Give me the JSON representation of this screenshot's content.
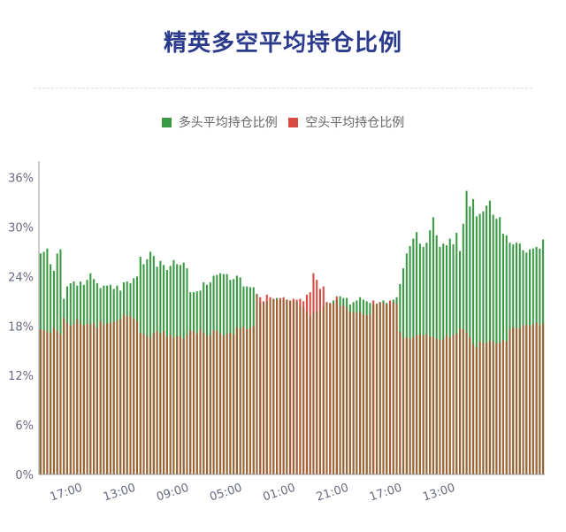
{
  "title": "精英多空平均持仓比例",
  "legend": {
    "long_label": "多头平均持仓比例",
    "short_label": "空头平均持仓比例"
  },
  "colors": {
    "long": "#3a9a43",
    "short": "#d94a42",
    "title": "#2b3a8c"
  },
  "chart_data": {
    "type": "bar",
    "stacked": false,
    "overlay": true,
    "ylim": [
      0,
      38
    ],
    "yticks": [
      "0%",
      "6%",
      "12%",
      "18%",
      "24%",
      "30%",
      "36%"
    ],
    "ytick_values": [
      0,
      6,
      12,
      18,
      24,
      30,
      36
    ],
    "xticks": [
      "17:00",
      "13:00",
      "09:00",
      "05:00",
      "01:00",
      "21:00",
      "17:00",
      "13:00"
    ],
    "xtick_index": [
      8,
      24,
      40,
      56,
      72,
      88,
      104,
      120
    ],
    "grid": false,
    "legend_position": "top-center",
    "series": [
      {
        "name": "多头平均持仓比例",
        "values": [
          26.8,
          27.0,
          27.4,
          25.5,
          24.7,
          26.8,
          27.3,
          21.3,
          22.8,
          23.2,
          23.4,
          22.9,
          23.4,
          23.0,
          23.6,
          24.4,
          23.7,
          23.2,
          22.6,
          22.9,
          22.9,
          23.0,
          22.5,
          22.9,
          22.3,
          23.3,
          23.4,
          23.2,
          23.8,
          24.0,
          26.4,
          25.5,
          26.1,
          27.0,
          26.5,
          25.2,
          25.9,
          25.4,
          24.8,
          25.3,
          26.0,
          25.5,
          25.4,
          25.7,
          25.0,
          22.1,
          22.1,
          22.2,
          22.3,
          23.3,
          23.0,
          23.3,
          24.1,
          24.2,
          24.4,
          24.3,
          24.3,
          23.6,
          23.7,
          24.1,
          23.9,
          22.8,
          22.8,
          22.7,
          22.7,
          21.9,
          20.8,
          20.8,
          21.0,
          21.2,
          21.3,
          21.4,
          21.3,
          21.3,
          21.2,
          21.0,
          21.0,
          20.9,
          20.5,
          20.3,
          19.7,
          19.2,
          19.6,
          19.8,
          19.9,
          20.4,
          20.8,
          20.7,
          21.1,
          21.2,
          21.6,
          21.4,
          21.4,
          20.6,
          20.9,
          21.1,
          21.5,
          21.2,
          21.0,
          20.8,
          20.6,
          20.7,
          20.9,
          21.1,
          20.8,
          20.6,
          21.2,
          21.5,
          23.1,
          25.0,
          26.8,
          27.7,
          28.6,
          29.4,
          28.0,
          27.6,
          28.1,
          29.6,
          31.2,
          29.0,
          27.6,
          28.0,
          27.8,
          28.6,
          27.9,
          29.3,
          27.1,
          30.4,
          34.4,
          32.5,
          33.4,
          31.3,
          31.6,
          31.9,
          32.6,
          33.2,
          31.5,
          31.0,
          31.2,
          29.2,
          29.0,
          28.1,
          27.9,
          28.1,
          28.0,
          27.2,
          26.9,
          27.3,
          27.4,
          27.6,
          27.4,
          28.5
        ],
        "color": "#3a9a43"
      },
      {
        "name": "空头平均持仓比例",
        "values": [
          17.6,
          17.5,
          17.3,
          17.2,
          17.8,
          17.4,
          17.0,
          19.0,
          18.4,
          18.0,
          18.2,
          18.8,
          18.3,
          18.1,
          18.3,
          18.2,
          18.3,
          17.8,
          18.6,
          18.2,
          18.3,
          18.4,
          18.5,
          18.7,
          18.8,
          19.4,
          19.2,
          19.2,
          18.9,
          18.6,
          17.2,
          17.0,
          16.8,
          16.6,
          17.2,
          17.4,
          17.1,
          17.4,
          16.7,
          16.9,
          16.6,
          16.8,
          16.7,
          16.5,
          16.9,
          17.5,
          17.4,
          17.1,
          17.6,
          17.2,
          16.8,
          16.9,
          17.5,
          17.4,
          17.1,
          16.8,
          17.1,
          17.2,
          17.0,
          17.8,
          17.7,
          17.9,
          17.6,
          17.8,
          18.0,
          21.8,
          21.5,
          21.0,
          21.8,
          21.5,
          21.3,
          21.2,
          21.4,
          21.5,
          21.2,
          21.1,
          21.3,
          21.2,
          21.3,
          21.0,
          21.8,
          22.1,
          24.4,
          23.6,
          22.5,
          22.8,
          20.9,
          20.8,
          20.7,
          21.6,
          20.4,
          20.5,
          20.2,
          19.7,
          19.7,
          19.6,
          19.7,
          19.4,
          19.3,
          19.4,
          21.1,
          20.7,
          20.9,
          20.8,
          20.6,
          21.1,
          20.9,
          20.7,
          17.3,
          16.6,
          16.6,
          16.5,
          16.6,
          16.9,
          16.9,
          16.9,
          17.0,
          16.7,
          16.7,
          16.5,
          16.3,
          16.4,
          16.9,
          16.6,
          16.9,
          17.1,
          17.7,
          17.6,
          17.2,
          16.6,
          15.8,
          15.4,
          16.1,
          16.0,
          15.9,
          16.2,
          16.1,
          15.9,
          16.0,
          16.3,
          16.1,
          17.6,
          17.8,
          17.8,
          17.7,
          18.1,
          18.2,
          18.0,
          18.2,
          18.4,
          18.1,
          18.3,
          18.2,
          17.1
        ],
        "color": "#d94a42"
      }
    ]
  }
}
